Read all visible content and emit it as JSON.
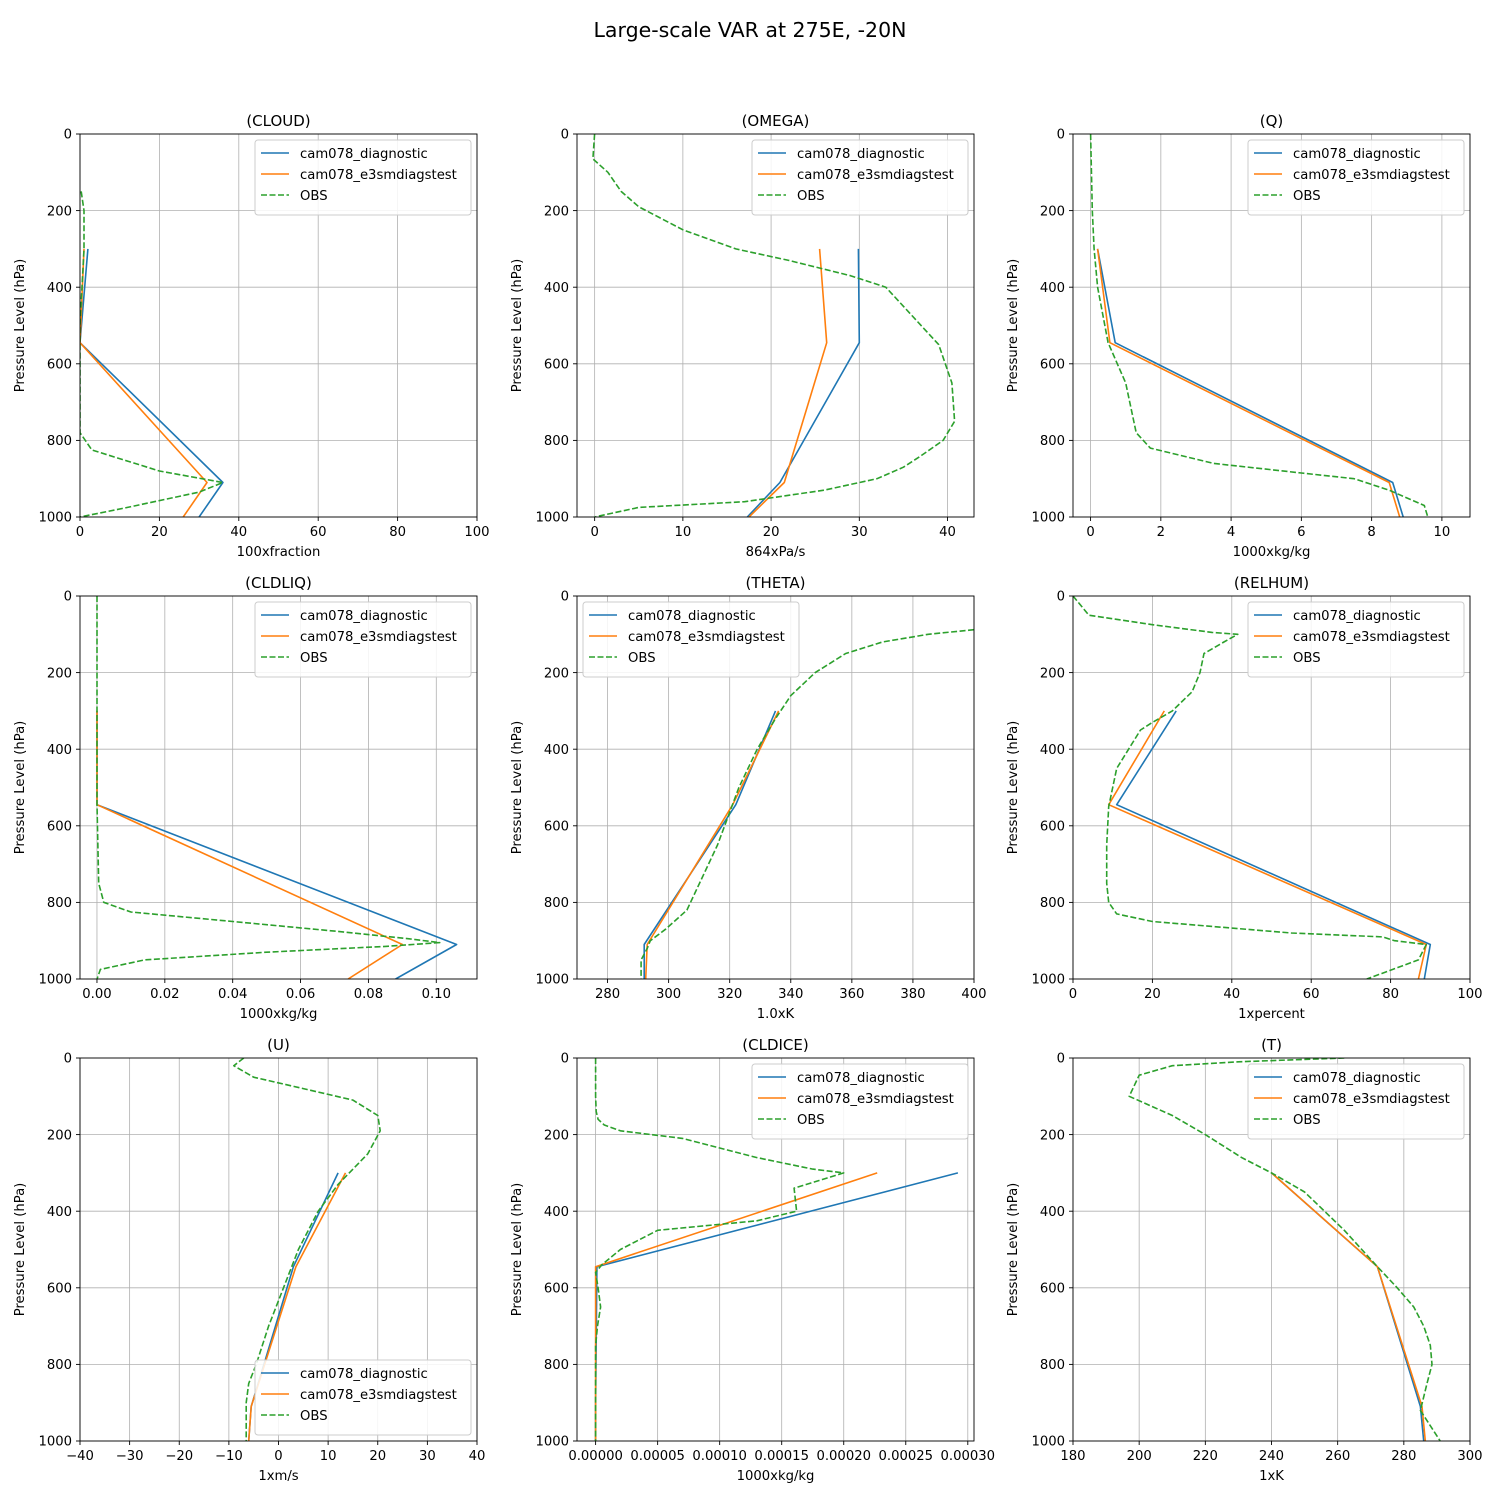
{
  "figure_title": "Large-scale VAR at 275E, -20N",
  "legend_labels": [
    "cam078_diagnostic",
    "cam078_e3smdiagstest",
    "OBS"
  ],
  "series_colors": [
    "#1f77b4",
    "#ff7f0e",
    "#2ca02c"
  ],
  "chart_data": [
    {
      "type": "line",
      "title": "(CLOUD)",
      "xlabel": "100xfraction",
      "ylabel": "Pressure Level (hPa)",
      "xlim": [
        0,
        100
      ],
      "ylim": [
        1000,
        0
      ],
      "xticks": [
        0,
        20,
        40,
        60,
        80,
        100
      ],
      "xtick_labels": [
        "0",
        "20",
        "40",
        "60",
        "80",
        "100"
      ],
      "yticks": [
        0,
        200,
        400,
        600,
        800,
        1000
      ],
      "ytick_labels": [
        "0",
        "200",
        "400",
        "600",
        "800",
        "1000"
      ],
      "legend": "top-right",
      "grid": true,
      "series": [
        {
          "name": "cam078_diagnostic",
          "style": "solid",
          "x": [
            2,
            0,
            36,
            30
          ],
          "y": [
            300,
            545,
            910,
            1000
          ]
        },
        {
          "name": "cam078_e3smdiagstest",
          "style": "solid",
          "x": [
            1,
            0,
            32,
            26
          ],
          "y": [
            300,
            545,
            910,
            1000
          ]
        },
        {
          "name": "OBS",
          "style": "dashed",
          "x": [
            0.3,
            1,
            1,
            0.5,
            0,
            0,
            3,
            20,
            36,
            30,
            12,
            0
          ],
          "y": [
            150,
            200,
            300,
            400,
            500,
            780,
            825,
            880,
            910,
            935,
            975,
            1000
          ]
        }
      ]
    },
    {
      "type": "line",
      "title": "(OMEGA)",
      "xlabel": "864xPa/s",
      "ylabel": "Pressure Level (hPa)",
      "xlim": [
        -2,
        43
      ],
      "ylim": [
        1000,
        0
      ],
      "xticks": [
        0,
        10,
        20,
        30,
        40
      ],
      "xtick_labels": [
        "0",
        "10",
        "20",
        "30",
        "40"
      ],
      "yticks": [
        0,
        200,
        400,
        600,
        800,
        1000
      ],
      "ytick_labels": [
        "0",
        "200",
        "400",
        "600",
        "800",
        "1000"
      ],
      "legend": "top-right",
      "grid": true,
      "series": [
        {
          "name": "cam078_diagnostic",
          "style": "solid",
          "x": [
            29.9,
            30,
            21,
            17.3
          ],
          "y": [
            300,
            545,
            910,
            1000
          ]
        },
        {
          "name": "cam078_e3smdiagstest",
          "style": "solid",
          "x": [
            25.5,
            26.3,
            21.5,
            17.5
          ],
          "y": [
            300,
            545,
            910,
            1000
          ]
        },
        {
          "name": "OBS",
          "style": "dashed",
          "x": [
            0,
            -0.2,
            1.5,
            3,
            5,
            10,
            16,
            22,
            29,
            33,
            39,
            40.5,
            40.8,
            39.5,
            37,
            35,
            32,
            26,
            17,
            5,
            0
          ],
          "y": [
            0,
            65,
            100,
            150,
            190,
            250,
            300,
            330,
            370,
            400,
            550,
            650,
            750,
            800,
            840,
            870,
            900,
            930,
            960,
            975,
            1000
          ]
        }
      ]
    },
    {
      "type": "line",
      "title": "(Q)",
      "xlabel": "1000xkg/kg",
      "ylabel": "Pressure Level (hPa)",
      "xlim": [
        -0.5,
        10.8
      ],
      "ylim": [
        1000,
        0
      ],
      "xticks": [
        0,
        2,
        4,
        6,
        8,
        10
      ],
      "xtick_labels": [
        "0",
        "2",
        "4",
        "6",
        "8",
        "10"
      ],
      "yticks": [
        0,
        200,
        400,
        600,
        800,
        1000
      ],
      "ytick_labels": [
        "0",
        "200",
        "400",
        "600",
        "800",
        "1000"
      ],
      "legend": "top-right",
      "grid": true,
      "series": [
        {
          "name": "cam078_diagnostic",
          "style": "solid",
          "x": [
            0.2,
            0.7,
            8.6,
            8.9
          ],
          "y": [
            300,
            545,
            910,
            1000
          ]
        },
        {
          "name": "cam078_e3smdiagstest",
          "style": "solid",
          "x": [
            0.2,
            0.55,
            8.5,
            8.8
          ],
          "y": [
            300,
            545,
            910,
            1000
          ]
        },
        {
          "name": "OBS",
          "style": "dashed",
          "x": [
            0,
            0.05,
            0.1,
            0.2,
            0.5,
            1.0,
            1.3,
            1.7,
            3.5,
            6,
            7.5,
            8.5,
            9.5,
            9.6
          ],
          "y": [
            0,
            200,
            300,
            400,
            545,
            650,
            780,
            820,
            860,
            885,
            900,
            930,
            970,
            1000
          ]
        }
      ]
    },
    {
      "type": "line",
      "title": "(CLDLIQ)",
      "xlabel": "1000xkg/kg",
      "ylabel": "Pressure Level (hPa)",
      "xlim": [
        -0.005,
        0.112
      ],
      "ylim": [
        1000,
        0
      ],
      "xticks": [
        0,
        0.02,
        0.04,
        0.06,
        0.08,
        0.1
      ],
      "xtick_labels": [
        "0.00",
        "0.02",
        "0.04",
        "0.06",
        "0.08",
        "0.10"
      ],
      "yticks": [
        0,
        200,
        400,
        600,
        800,
        1000
      ],
      "ytick_labels": [
        "0",
        "200",
        "400",
        "600",
        "800",
        "1000"
      ],
      "legend": "top-right",
      "grid": true,
      "series": [
        {
          "name": "cam078_diagnostic",
          "style": "solid",
          "x": [
            0,
            0,
            0.106,
            0.088
          ],
          "y": [
            300,
            545,
            910,
            1000
          ]
        },
        {
          "name": "cam078_e3smdiagstest",
          "style": "solid",
          "x": [
            0,
            0,
            0.09,
            0.074
          ],
          "y": [
            300,
            545,
            910,
            1000
          ]
        },
        {
          "name": "OBS",
          "style": "dashed",
          "x": [
            0,
            0,
            0,
            0.0005,
            0.002,
            0.01,
            0.04,
            0.07,
            0.092,
            0.101,
            0.085,
            0.05,
            0.014,
            0.001,
            0
          ],
          "y": [
            0,
            300,
            545,
            750,
            800,
            825,
            850,
            875,
            895,
            905,
            915,
            930,
            950,
            975,
            1000
          ]
        }
      ]
    },
    {
      "type": "line",
      "title": "(THETA)",
      "xlabel": "1.0xK",
      "ylabel": "Pressure Level (hPa)",
      "xlim": [
        270,
        400
      ],
      "ylim": [
        1000,
        0
      ],
      "xticks": [
        280,
        300,
        320,
        340,
        360,
        380,
        400
      ],
      "xtick_labels": [
        "280",
        "300",
        "320",
        "340",
        "360",
        "380",
        "400"
      ],
      "yticks": [
        0,
        200,
        400,
        600,
        800,
        1000
      ],
      "ytick_labels": [
        "0",
        "200",
        "400",
        "600",
        "800",
        "1000"
      ],
      "legend": "top-left",
      "grid": true,
      "series": [
        {
          "name": "cam078_diagnostic",
          "style": "solid",
          "x": [
            335,
            322,
            292,
            292
          ],
          "y": [
            300,
            545,
            910,
            1000
          ]
        },
        {
          "name": "cam078_e3smdiagstest",
          "style": "solid",
          "x": [
            336,
            321,
            293,
            292.5
          ],
          "y": [
            300,
            545,
            910,
            1000
          ]
        },
        {
          "name": "OBS",
          "style": "dashed",
          "x": [
            400,
            385,
            370,
            358,
            348,
            340,
            335,
            329,
            323,
            316,
            306,
            299,
            294,
            293,
            291,
            291
          ],
          "y": [
            88,
            100,
            120,
            150,
            200,
            260,
            320,
            400,
            500,
            650,
            820,
            870,
            900,
            920,
            950,
            1000
          ]
        }
      ]
    },
    {
      "type": "line",
      "title": "(RELHUM)",
      "xlabel": "1xpercent",
      "ylabel": "Pressure Level (hPa)",
      "xlim": [
        0,
        100
      ],
      "ylim": [
        1000,
        0
      ],
      "xticks": [
        0,
        20,
        40,
        60,
        80,
        100
      ],
      "xtick_labels": [
        "0",
        "20",
        "40",
        "60",
        "80",
        "100"
      ],
      "yticks": [
        0,
        200,
        400,
        600,
        800,
        1000
      ],
      "ytick_labels": [
        "0",
        "200",
        "400",
        "600",
        "800",
        "1000"
      ],
      "legend": "top-right",
      "grid": true,
      "series": [
        {
          "name": "cam078_diagnostic",
          "style": "solid",
          "x": [
            26,
            11,
            90,
            88.5
          ],
          "y": [
            300,
            545,
            910,
            1000
          ]
        },
        {
          "name": "cam078_e3smdiagstest",
          "style": "solid",
          "x": [
            23,
            9,
            89,
            87
          ],
          "y": [
            300,
            545,
            910,
            1000
          ]
        },
        {
          "name": "OBS",
          "style": "dashed",
          "x": [
            0,
            4,
            20,
            35,
            41.5,
            38,
            33,
            32,
            30,
            25,
            20,
            17,
            14,
            11,
            10,
            9,
            8.5,
            8.5,
            9,
            11,
            20,
            55,
            78,
            81,
            89,
            87,
            74
          ],
          "y": [
            0,
            50,
            75,
            95,
            100,
            120,
            150,
            200,
            250,
            300,
            330,
            350,
            400,
            450,
            500,
            550,
            650,
            750,
            800,
            830,
            850,
            880,
            890,
            900,
            910,
            950,
            1000
          ]
        }
      ]
    },
    {
      "type": "line",
      "title": "(U)",
      "xlabel": "1xm/s",
      "ylabel": "Pressure Level (hPa)",
      "xlim": [
        -40,
        40
      ],
      "ylim": [
        1000,
        0
      ],
      "xticks": [
        -40,
        -30,
        -20,
        -10,
        0,
        10,
        20,
        30,
        40
      ],
      "xtick_labels": [
        "−40",
        "−30",
        "−20",
        "−10",
        "0",
        "10",
        "20",
        "30",
        "40"
      ],
      "yticks": [
        0,
        200,
        400,
        600,
        800,
        1000
      ],
      "ytick_labels": [
        "0",
        "200",
        "400",
        "600",
        "800",
        "1000"
      ],
      "legend": "bottom-right",
      "grid": true,
      "series": [
        {
          "name": "cam078_diagnostic",
          "style": "solid",
          "x": [
            12,
            3,
            -5.5,
            -6
          ],
          "y": [
            300,
            545,
            910,
            1000
          ]
        },
        {
          "name": "cam078_e3smdiagstest",
          "style": "solid",
          "x": [
            13.5,
            3.5,
            -5.5,
            -6
          ],
          "y": [
            300,
            545,
            910,
            1000
          ]
        },
        {
          "name": "OBS",
          "style": "dashed",
          "x": [
            -7,
            -9,
            -5,
            5,
            15,
            20,
            20.5,
            18,
            12,
            8,
            4,
            1,
            -2,
            -4.5,
            -6,
            -6.5,
            -6.5
          ],
          "y": [
            0,
            20,
            50,
            80,
            110,
            150,
            190,
            250,
            330,
            400,
            500,
            600,
            700,
            800,
            850,
            900,
            1000
          ]
        }
      ]
    },
    {
      "type": "line",
      "title": "(CLDICE)",
      "xlabel": "1000xkg/kg",
      "ylabel": "Pressure Level (hPa)",
      "xlim": [
        -1.5e-05,
        0.000305
      ],
      "ylim": [
        1000,
        0
      ],
      "xticks": [
        0,
        5e-05,
        0.0001,
        0.00015,
        0.0002,
        0.00025,
        0.0003
      ],
      "xtick_labels": [
        "0.00000",
        "0.00005",
        "0.00010",
        "0.00015",
        "0.00020",
        "0.00025",
        "0.00030"
      ],
      "yticks": [
        0,
        200,
        400,
        600,
        800,
        1000
      ],
      "ytick_labels": [
        "0",
        "200",
        "400",
        "600",
        "800",
        "1000"
      ],
      "legend": "top-right",
      "grid": true,
      "series": [
        {
          "name": "cam078_diagnostic",
          "style": "solid",
          "x": [
            0.000292,
            1e-06,
            0,
            0
          ],
          "y": [
            300,
            545,
            910,
            1000
          ]
        },
        {
          "name": "cam078_e3smdiagstest",
          "style": "solid",
          "x": [
            0.000227,
            0,
            0,
            0
          ],
          "y": [
            300,
            545,
            910,
            1000
          ]
        },
        {
          "name": "OBS",
          "style": "dashed",
          "x": [
            0,
            0,
            5e-07,
            2e-06,
            7e-06,
            2e-05,
            7e-05,
            0.00013,
            0.000175,
            0.0002,
            0.00016,
            0.000162,
            0.00013,
            5e-05,
            2e-05,
            5e-06,
            0,
            2e-06,
            4e-06,
            1.5e-06,
            0,
            0,
            0
          ],
          "y": [
            0,
            100,
            140,
            160,
            175,
            190,
            210,
            260,
            290,
            300,
            340,
            400,
            425,
            450,
            500,
            540,
            560,
            600,
            650,
            700,
            750,
            850,
            1000
          ]
        }
      ]
    },
    {
      "type": "line",
      "title": "(T)",
      "xlabel": "1xK",
      "ylabel": "Pressure Level (hPa)",
      "xlim": [
        180,
        300
      ],
      "ylim": [
        1000,
        0
      ],
      "xticks": [
        180,
        200,
        220,
        240,
        260,
        280,
        300
      ],
      "xtick_labels": [
        "180",
        "200",
        "220",
        "240",
        "260",
        "280",
        "300"
      ],
      "yticks": [
        0,
        200,
        400,
        600,
        800,
        1000
      ],
      "ytick_labels": [
        "0",
        "200",
        "400",
        "600",
        "800",
        "1000"
      ],
      "legend": "top-right",
      "grid": true,
      "series": [
        {
          "name": "cam078_diagnostic",
          "style": "solid",
          "x": [
            240,
            272,
            285,
            286
          ],
          "y": [
            300,
            545,
            910,
            1000
          ]
        },
        {
          "name": "cam078_e3smdiagstest",
          "style": "solid",
          "x": [
            240,
            272,
            285.5,
            286.5
          ],
          "y": [
            300,
            545,
            910,
            1000
          ]
        },
        {
          "name": "OBS",
          "style": "dashed",
          "x": [
            262,
            230,
            210,
            200,
            197,
            210,
            220,
            231,
            240,
            250,
            262,
            272,
            278,
            283,
            286,
            288,
            288.5,
            287,
            285,
            291
          ],
          "y": [
            0,
            10,
            20,
            45,
            100,
            150,
            200,
            260,
            300,
            350,
            450,
            545,
            600,
            650,
            700,
            750,
            800,
            850,
            920,
            1000
          ]
        }
      ]
    }
  ]
}
